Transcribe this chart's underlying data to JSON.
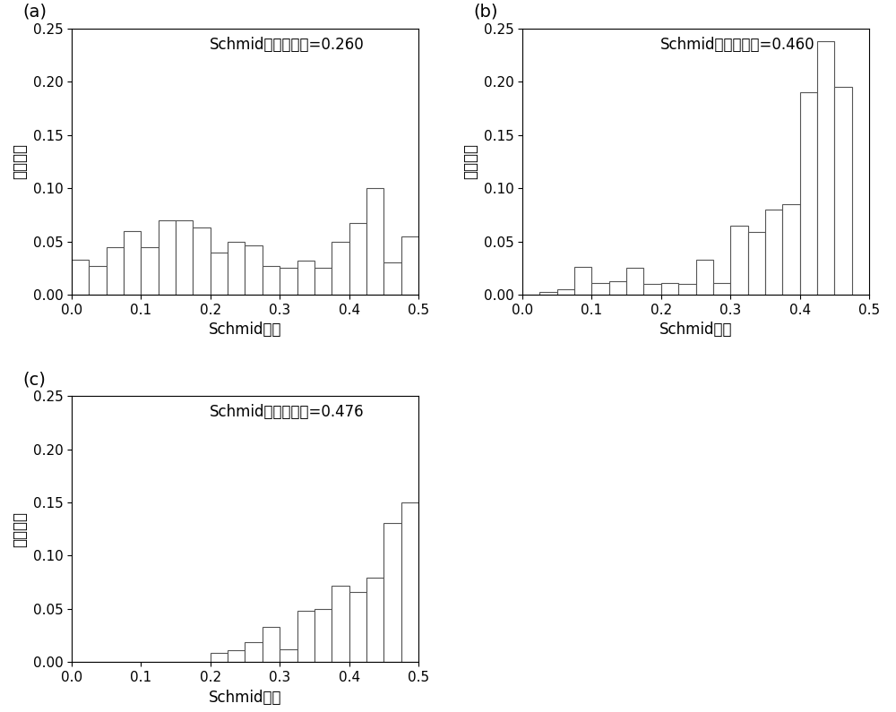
{
  "subplot_labels": [
    "(a)",
    "(b)",
    "(c)"
  ],
  "annotations": [
    "Schmid因子平均值=0.260",
    "Schmid因子平均值=0.460",
    "Schmid因子平均值=0.476"
  ],
  "xlabel": "Schmid因子",
  "ylabel": "所占比例",
  "bin_edges": [
    0.0,
    0.025,
    0.05,
    0.075,
    0.1,
    0.125,
    0.15,
    0.175,
    0.2,
    0.225,
    0.25,
    0.275,
    0.3,
    0.325,
    0.35,
    0.375,
    0.4,
    0.425,
    0.45,
    0.475,
    0.5
  ],
  "hist_a": [
    0.033,
    0.027,
    0.045,
    0.06,
    0.045,
    0.07,
    0.07,
    0.063,
    0.04,
    0.05,
    0.046,
    0.027,
    0.025,
    0.032,
    0.025,
    0.05,
    0.067,
    0.1,
    0.03,
    0.055
  ],
  "hist_b": [
    0.0,
    0.003,
    0.005,
    0.026,
    0.011,
    0.013,
    0.025,
    0.01,
    0.011,
    0.01,
    0.033,
    0.011,
    0.065,
    0.059,
    0.08,
    0.085,
    0.19,
    0.238,
    0.195,
    0.0
  ],
  "hist_c": [
    0.0,
    0.0,
    0.0,
    0.0,
    0.0,
    0.0,
    0.0,
    0.0,
    0.009,
    0.011,
    0.019,
    0.033,
    0.012,
    0.048,
    0.05,
    0.072,
    0.066,
    0.079,
    0.131,
    0.15
  ],
  "ylim": [
    0.0,
    0.25
  ],
  "xlim": [
    0.0,
    0.5
  ],
  "yticks": [
    0.0,
    0.05,
    0.1,
    0.15,
    0.2,
    0.25
  ],
  "xticks": [
    0.0,
    0.1,
    0.2,
    0.3,
    0.4,
    0.5
  ],
  "bar_facecolor": "white",
  "bar_edgecolor": "#555555",
  "bar_linewidth": 0.8,
  "annotation_fontsize": 12,
  "label_fontsize": 12,
  "tick_fontsize": 11,
  "subplot_label_fontsize": 14
}
